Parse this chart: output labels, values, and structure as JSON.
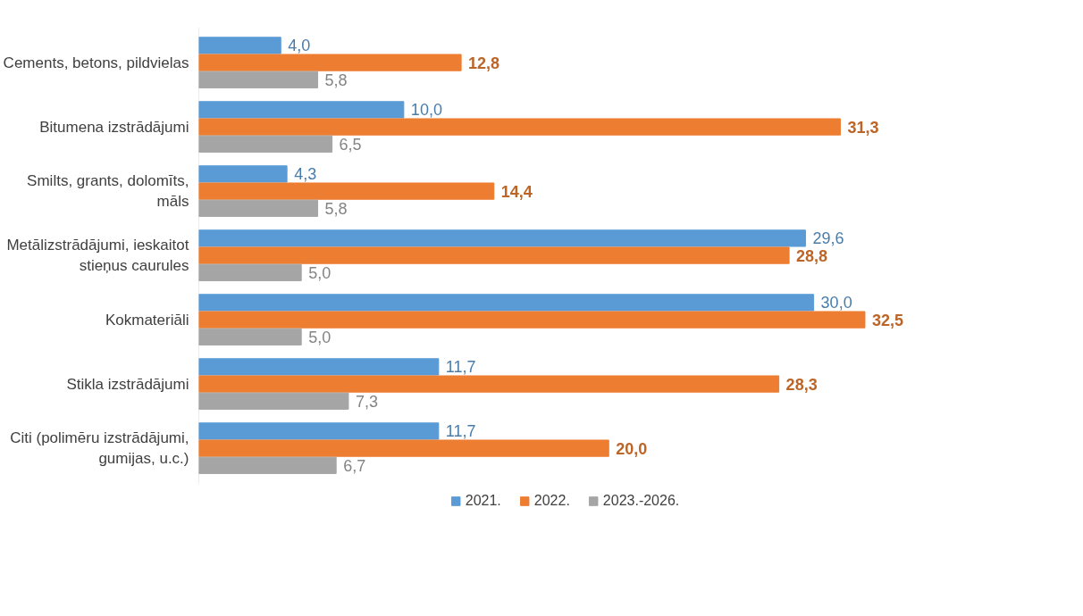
{
  "chart_data": {
    "type": "bar",
    "orientation": "horizontal",
    "categories": [
      "Cements, betons, pildvielas",
      "Bitumena izstrādājumi",
      "Smilts, grants, dolomīts, māls",
      "Metālizstrādājumi, ieskaitot stieņus caurules",
      "Kokmateriāli",
      "Stikla izstrādājumi",
      "Citi (polimēru izstrādājumi, gumijas, u.c.)"
    ],
    "series": [
      {
        "name": "2021.",
        "color": "#5b9bd5",
        "values": [
          4.0,
          10.0,
          4.3,
          29.6,
          30.0,
          11.7,
          11.7
        ],
        "value_labels": [
          "4,0",
          "10,0",
          "4,3",
          "29,6",
          "30,0",
          "11,7",
          "11,7"
        ]
      },
      {
        "name": "2022.",
        "color": "#ed7d31",
        "values": [
          12.8,
          31.3,
          14.4,
          28.8,
          32.5,
          28.3,
          20.0
        ],
        "value_labels": [
          "12,8",
          "31,3",
          "14,4",
          "28,8",
          "32,5",
          "28,3",
          "20,0"
        ]
      },
      {
        "name": "2023.-2026.",
        "color": "#a5a5a5",
        "values": [
          5.8,
          6.5,
          5.8,
          5.0,
          5.0,
          7.3,
          6.7
        ],
        "value_labels": [
          "5,8",
          "6,5",
          "5,8",
          "5,0",
          "5,0",
          "7,3",
          "6,7"
        ]
      }
    ],
    "legend": "bottom",
    "tick_labels": "y",
    "grid": false
  }
}
